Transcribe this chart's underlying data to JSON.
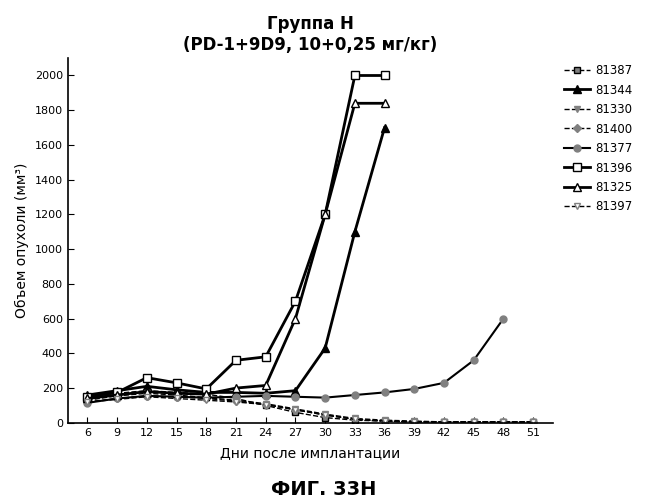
{
  "title_line1": "Группа Н",
  "title_line2": "(PD-1+9D9, 10+0,25 мг/кг)",
  "xlabel": "Дни после имплантации",
  "ylabel": "Объем опухоли (мм³)",
  "figure_label": "ФИГ. 33Н",
  "xlim": [
    4,
    53
  ],
  "ylim": [
    0,
    2100
  ],
  "xticks": [
    6,
    9,
    12,
    15,
    18,
    21,
    24,
    27,
    30,
    33,
    36,
    39,
    42,
    45,
    48,
    51
  ],
  "yticks": [
    0,
    200,
    400,
    600,
    800,
    1000,
    1200,
    1400,
    1600,
    1800,
    2000
  ],
  "series": [
    {
      "label": "81387",
      "marker": "s",
      "mfc": "gray",
      "mec": "black",
      "color": "black",
      "ms": 5,
      "lw": 1.0,
      "ls": "--",
      "x": [
        6,
        9,
        12,
        15,
        18,
        21,
        24,
        27,
        30,
        33,
        36,
        39,
        42,
        45,
        48,
        51
      ],
      "y": [
        150,
        170,
        185,
        175,
        165,
        140,
        100,
        60,
        30,
        15,
        10,
        5,
        5,
        5,
        5,
        5
      ]
    },
    {
      "label": "81344",
      "marker": "^",
      "mfc": "black",
      "mec": "black",
      "color": "black",
      "ms": 6,
      "lw": 2.0,
      "ls": "-",
      "x": [
        6,
        9,
        12,
        15,
        18,
        21,
        24,
        27,
        30,
        33,
        36
      ],
      "y": [
        160,
        185,
        210,
        190,
        175,
        175,
        170,
        185,
        430,
        1100,
        1700
      ]
    },
    {
      "label": "81330",
      "marker": "v",
      "mfc": "gray",
      "mec": "gray",
      "color": "black",
      "ms": 5,
      "lw": 1.0,
      "ls": "--",
      "x": [
        6,
        9,
        12,
        15,
        18,
        21,
        24,
        27,
        30,
        33,
        36,
        39,
        42,
        45,
        48,
        51
      ],
      "y": [
        130,
        155,
        170,
        160,
        145,
        130,
        110,
        80,
        50,
        25,
        15,
        10,
        5,
        5,
        5,
        5
      ]
    },
    {
      "label": "81400",
      "marker": "D",
      "mfc": "gray",
      "mec": "gray",
      "color": "black",
      "ms": 4,
      "lw": 1.0,
      "ls": "--",
      "x": [
        6,
        9,
        12,
        15,
        18,
        21,
        24,
        27,
        30,
        33,
        36,
        39,
        42,
        45,
        48,
        51
      ],
      "y": [
        120,
        140,
        155,
        150,
        140,
        125,
        105,
        75,
        45,
        20,
        10,
        5,
        5,
        5,
        5,
        5
      ]
    },
    {
      "label": "81377",
      "marker": "o",
      "mfc": "gray",
      "mec": "gray",
      "color": "black",
      "ms": 5,
      "lw": 1.5,
      "ls": "-",
      "x": [
        6,
        9,
        12,
        15,
        18,
        21,
        24,
        27,
        30,
        33,
        36,
        39,
        42,
        45,
        48
      ],
      "y": [
        115,
        140,
        155,
        150,
        145,
        150,
        155,
        150,
        145,
        160,
        175,
        195,
        230,
        360,
        600
      ]
    },
    {
      "label": "81396",
      "marker": "s",
      "mfc": "white",
      "mec": "black",
      "color": "black",
      "ms": 6,
      "lw": 2.0,
      "ls": "-",
      "x": [
        6,
        9,
        12,
        15,
        18,
        21,
        24,
        27,
        30,
        33,
        36
      ],
      "y": [
        150,
        175,
        260,
        230,
        195,
        360,
        380,
        700,
        1200,
        2000,
        2000
      ]
    },
    {
      "label": "81325",
      "marker": "^",
      "mfc": "white",
      "mec": "black",
      "color": "black",
      "ms": 6,
      "lw": 2.0,
      "ls": "-",
      "x": [
        6,
        9,
        12,
        15,
        18,
        21,
        24,
        27,
        30,
        33,
        36
      ],
      "y": [
        140,
        160,
        180,
        170,
        165,
        200,
        215,
        600,
        1200,
        1840,
        1840
      ]
    },
    {
      "label": "81397",
      "marker": "v",
      "mfc": "white",
      "mec": "gray",
      "color": "black",
      "ms": 5,
      "lw": 1.0,
      "ls": "--",
      "x": [
        6,
        9,
        12,
        15,
        18,
        21,
        24,
        27,
        30,
        33,
        36,
        39,
        42,
        45,
        48,
        51
      ],
      "y": [
        120,
        135,
        150,
        140,
        130,
        120,
        105,
        75,
        45,
        20,
        10,
        5,
        5,
        5,
        5,
        5
      ]
    }
  ]
}
